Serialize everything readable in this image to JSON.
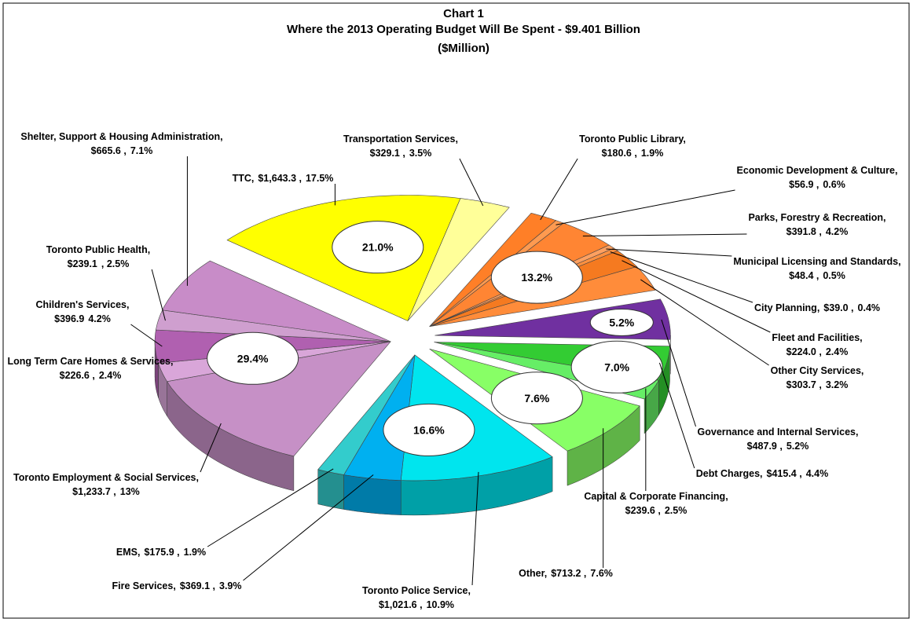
{
  "chart_data": {
    "type": "pie3d",
    "title": "Chart 1",
    "subtitle": "Where the 2013 Operating Budget Will Be Spent - $9.401 Billion",
    "unit_label": "($Million)",
    "categories": [
      "TTC,",
      "Transportation Services,",
      "Toronto Public Library,",
      "Economic Development & Culture,",
      "Parks, Forestry & Recreation,",
      "Municipal Licensing and Standards,",
      "City Planning,",
      "Fleet and Facilities,",
      "Other City Services,",
      "Governance and Internal Services,",
      "Debt Charges,",
      "Capital & Corporate Financing,",
      "Other,",
      "Toronto Police Service,",
      "Fire Services,",
      "EMS,",
      "Toronto Employment & Social Services,",
      "Long Term Care Homes & Services,",
      "Children's Services,",
      "Toronto Public Health,",
      "Shelter, Support & Housing Administration,"
    ],
    "values": [
      1643.3,
      329.1,
      180.6,
      56.9,
      391.8,
      48.4,
      39.0,
      224.0,
      303.7,
      487.9,
      415.4,
      239.6,
      713.2,
      1021.6,
      369.1,
      175.9,
      1233.7,
      226.6,
      396.9,
      239.1,
      665.6
    ],
    "value_labels": [
      "$1,643.3 ,",
      "$329.1 ,",
      "$180.6 ,",
      "$56.9 ,",
      "$391.8 ,",
      "$48.4 ,",
      "$39.0 ,",
      "$224.0 ,",
      "$303.7 ,",
      "$487.9 ,",
      "$415.4 ,",
      "$239.6 ,",
      "$713.2 ,",
      "$1,021.6 ,",
      "$369.1 ,",
      "$175.9 ,",
      "$1,233.7 ,",
      "$226.6 ,",
      "$396.9",
      "$239.1",
      "$665.6 ,"
    ],
    "percents": [
      17.5,
      3.5,
      1.9,
      0.6,
      4.2,
      0.5,
      0.4,
      2.4,
      3.2,
      5.2,
      4.4,
      2.5,
      7.6,
      10.9,
      3.9,
      1.9,
      13,
      2.4,
      4.2,
      2.5,
      7.1
    ],
    "percent_labels": [
      "17.5%",
      "3.5%",
      "1.9%",
      "0.6%",
      "4.2%",
      "0.5%",
      "0.4%",
      "2.4%",
      "3.2%",
      "5.2%",
      "4.4%",
      "2.5%",
      "7.6%",
      "10.9%",
      "3.9%",
      "1.9%",
      "13%",
      "2.4%",
      "4.2%",
      ", 2.5%",
      "7.1%"
    ],
    "colors": [
      "#ffff00",
      "#ffff99",
      "#ff7f27",
      "#ff9a50",
      "#ff8533",
      "#ffa060",
      "#ff9040",
      "#f57a20",
      "#ff8c3a",
      "#7030a0",
      "#33cc33",
      "#66ee66",
      "#88ff66",
      "#00e5ee",
      "#00b0f0",
      "#33cccc",
      "#c690c6",
      "#d9a6d9",
      "#b060b0",
      "#cf9fcf",
      "#c88cc8"
    ],
    "annotations": [
      {
        "value": 21.0,
        "label": "21.0%"
      },
      {
        "value": 13.2,
        "label": "13.2%"
      },
      {
        "value": 5.2,
        "label": "5.2%"
      },
      {
        "value": 7.0,
        "label": "7.0%"
      },
      {
        "value": 7.6,
        "label": "7.6%"
      },
      {
        "value": 16.6,
        "label": "16.6%"
      },
      {
        "value": 29.4,
        "label": "29.4%"
      }
    ]
  }
}
